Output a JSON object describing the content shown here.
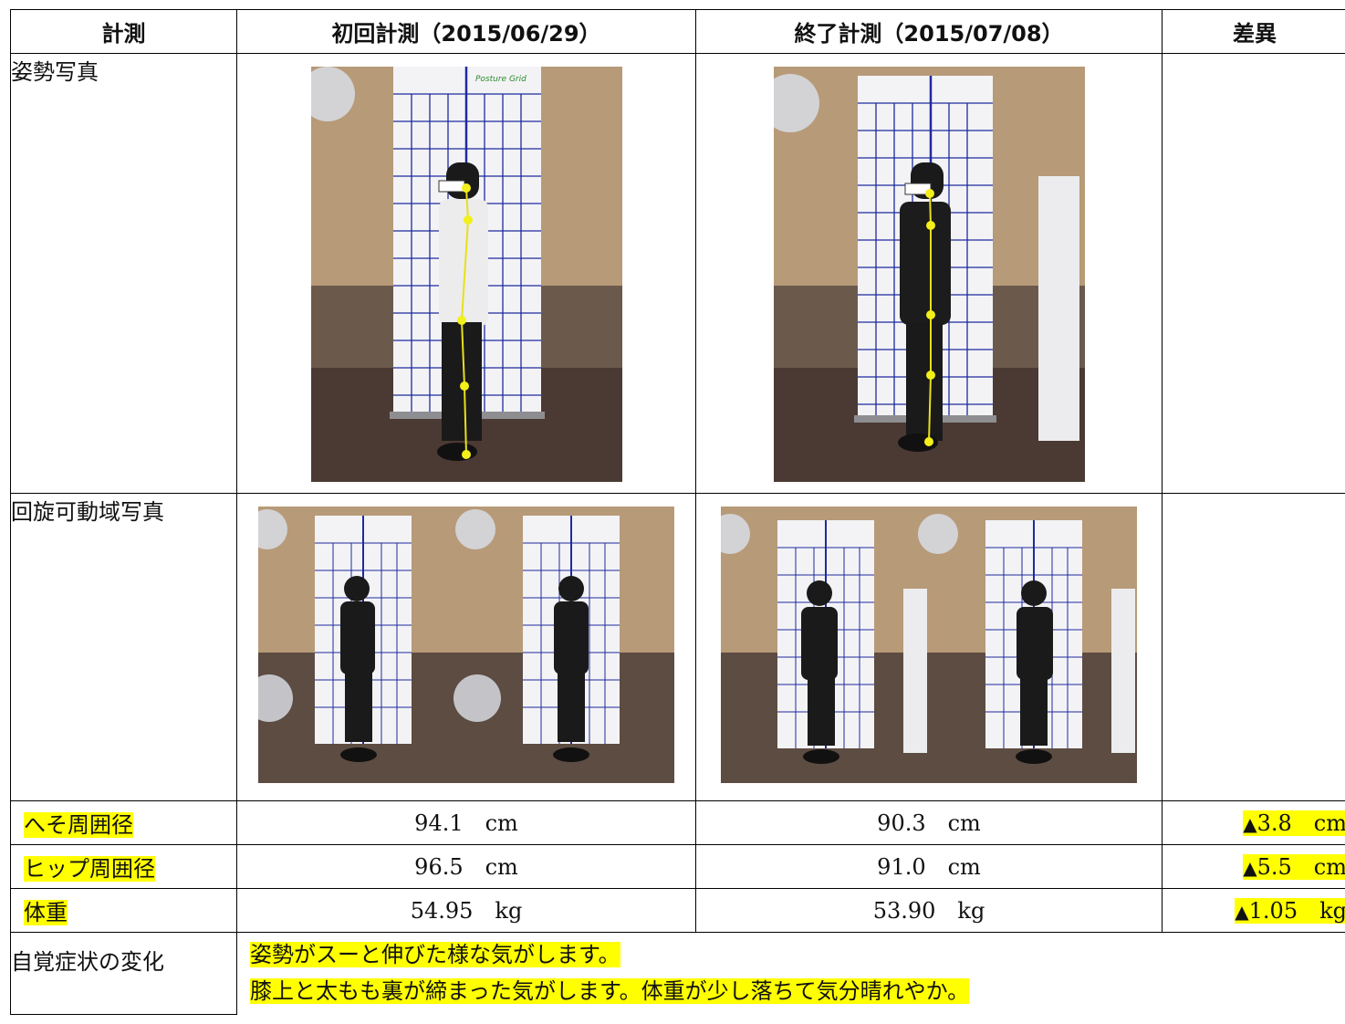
{
  "header": {
    "col1": "計測",
    "col2": "初回計測（2015/06/29）",
    "col3": "終了計測（2015/07/08）",
    "col4": "差異"
  },
  "rows": {
    "posture_label": "姿勢写真",
    "rotation_label": "回旋可動域写真",
    "navel": {
      "label": "へそ周囲径",
      "first": "94.1",
      "last": "90.3",
      "unit": "cm",
      "diff": "3.8"
    },
    "hip": {
      "label": "ヒップ周囲径",
      "first": "96.5",
      "last": "91.0",
      "unit": "cm",
      "diff": "5.5"
    },
    "weight": {
      "label": "体重",
      "first": "54.95",
      "last": "53.90",
      "unit": "kg",
      "diff": "1.05"
    },
    "symptom": {
      "label": "自覚症状の変化",
      "line1": "姿勢がスーと伸びた様な気がします。",
      "line2": "膝上と太もも裏が締まった気がします。体重が少し落ちて気分晴れやか。"
    }
  },
  "diff_marker": "▲",
  "poster_text": "Posture Grid",
  "colors": {
    "highlight": "#ffff00",
    "grid_blue": "#1f2a9c",
    "marker_yellow": "#f2ef1a"
  }
}
